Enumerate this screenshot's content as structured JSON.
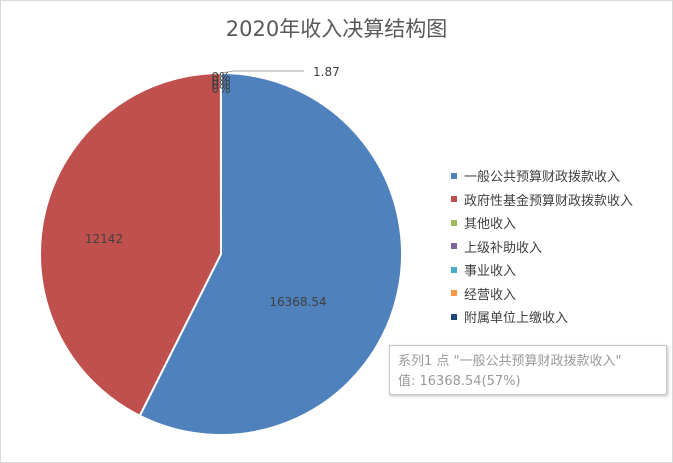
{
  "chart_data": {
    "type": "pie",
    "title": "2020年收入决算结构图",
    "categories": [
      "一般公共预算财政拨款收入",
      "政府性基金预算财政拨款收入",
      "其他收入",
      "上级补助收入",
      "事业收入",
      "经营收入",
      "附属单位上缴收入"
    ],
    "values": [
      16368.54,
      12142,
      1.87,
      0,
      0,
      0,
      0
    ],
    "data_labels": [
      "16368.54",
      "12142",
      "1.87",
      "0%",
      "0%",
      "0%",
      "0%"
    ],
    "colors": [
      "#4f81bd",
      "#c0504d",
      "#9bbb59",
      "#8064a2",
      "#4bacc6",
      "#f79646",
      "#1f497d"
    ],
    "legend_position": "right"
  },
  "tooltip": {
    "line1": "系列1 点 \"一般公共预算财政拨款收入\"",
    "line2": "值: 16368.54(57%)"
  }
}
